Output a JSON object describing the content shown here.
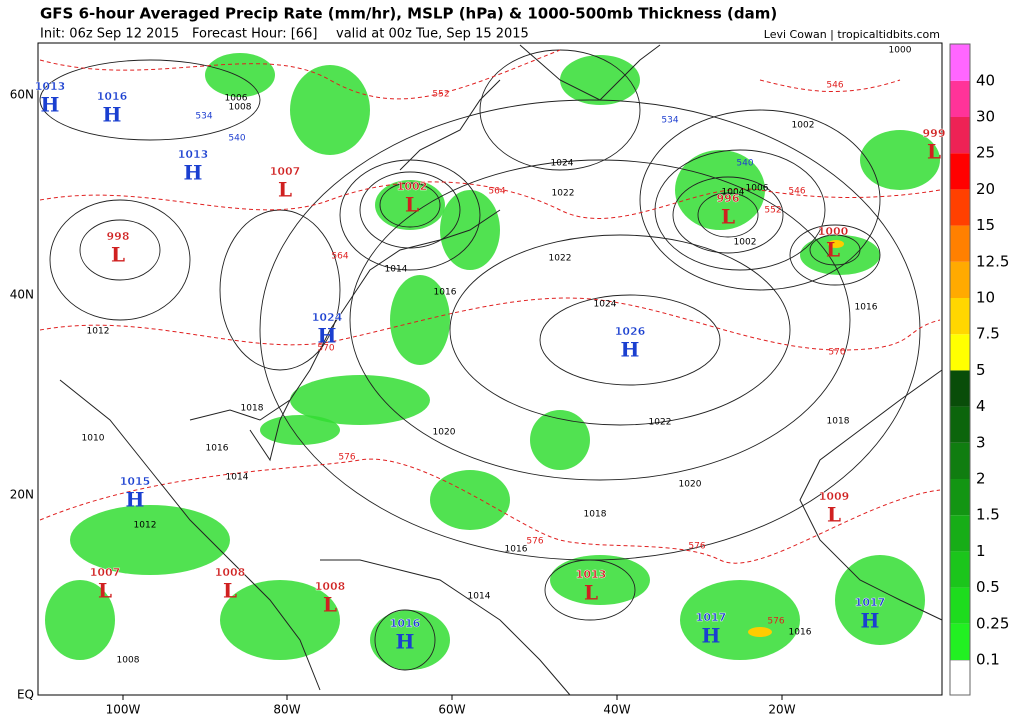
{
  "header": {
    "title": "GFS 6-hour Averaged Precip Rate (mm/hr), MSLP (hPa) & 1000-500mb Thickness (dam)",
    "init": "Init: 06z Sep 12 2015",
    "forecast_hour": "Forecast Hour: [66]",
    "valid": "valid at 00z Tue, Sep 15 2015",
    "credit": "Levi Cowan | tropicaltidbits.com"
  },
  "axes": {
    "lat_labels": [
      "60N",
      "40N",
      "20N",
      "EQ"
    ],
    "lon_labels": [
      "100W",
      "80W",
      "60W",
      "40W",
      "20W"
    ]
  },
  "colorbar": {
    "labels": [
      "0.1",
      "0.25",
      "0.5",
      "1",
      "1.5",
      "2",
      "3",
      "4",
      "5",
      "7.5",
      "10",
      "12.5",
      "15",
      "20",
      "25",
      "30",
      "40"
    ]
  },
  "centers": [
    {
      "letter": "H",
      "value": "1013"
    },
    {
      "letter": "H",
      "value": "1016"
    },
    {
      "letter": "H",
      "value": "1013"
    },
    {
      "letter": "L",
      "value": "1007"
    },
    {
      "letter": "L",
      "value": "998"
    },
    {
      "letter": "L",
      "value": "1002"
    },
    {
      "letter": "H",
      "value": "1024"
    },
    {
      "letter": "H",
      "value": "1026"
    },
    {
      "letter": "L",
      "value": "996"
    },
    {
      "letter": "L",
      "value": "1000"
    },
    {
      "letter": "L",
      "value": "999"
    },
    {
      "letter": "H",
      "value": "1015"
    },
    {
      "letter": "L",
      "value": "1009"
    },
    {
      "letter": "L",
      "value": "1007"
    },
    {
      "letter": "L",
      "value": "1008"
    },
    {
      "letter": "L",
      "value": "1008"
    },
    {
      "letter": "L",
      "value": "1013"
    },
    {
      "letter": "H",
      "value": "1016"
    },
    {
      "letter": "H",
      "value": "1017"
    },
    {
      "letter": "H",
      "value": "1017"
    }
  ],
  "isobar_labels": [
    "1024",
    "1022",
    "1022",
    "1024",
    "1020",
    "1022",
    "1020",
    "1018",
    "1016",
    "1014",
    "1016",
    "1018",
    "1016",
    "1014",
    "1012",
    "1010",
    "1008",
    "1002",
    "1006",
    "1002",
    "1016",
    "1018",
    "1016",
    "1000",
    "1004",
    "1006",
    "1008",
    "1012",
    "1014"
  ],
  "thickness_labels": [
    "552",
    "546",
    "546",
    "570",
    "576",
    "576",
    "576",
    "564",
    "564",
    "576",
    "552",
    "570"
  ],
  "cold_thickness_labels": [
    "534",
    "540",
    "534",
    "540"
  ]
}
